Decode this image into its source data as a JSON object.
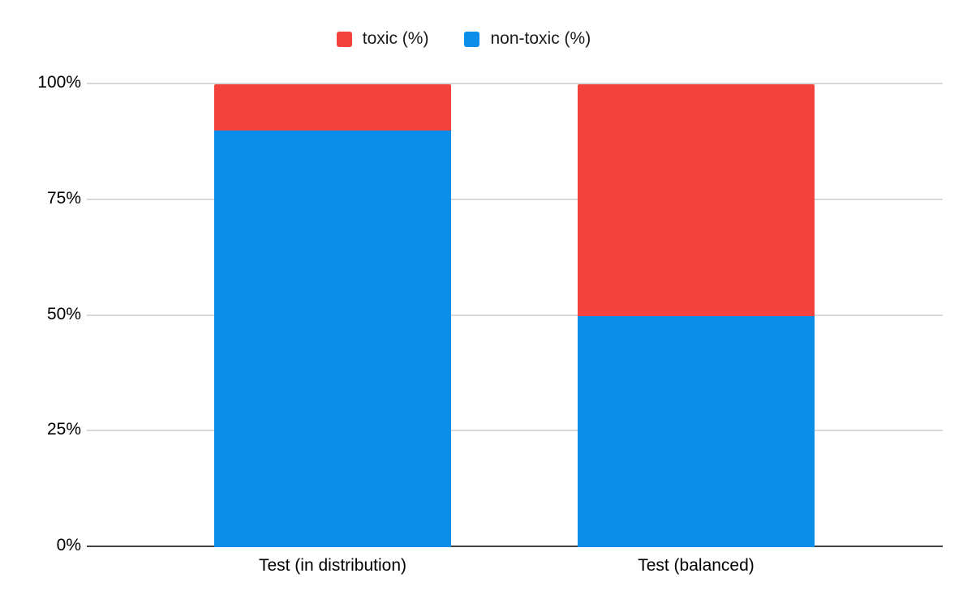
{
  "chart_data": {
    "type": "bar",
    "stacked": true,
    "title": "",
    "xlabel": "",
    "ylabel": "",
    "categories": [
      "Test (in distribution)",
      "Test (balanced)"
    ],
    "series": [
      {
        "name": "toxic (%)",
        "color": "#F4433C",
        "values": [
          10,
          50
        ]
      },
      {
        "name": "non-toxic (%)",
        "color": "#0B8EEA",
        "values": [
          90,
          50
        ]
      }
    ],
    "y_axis": {
      "ticks": [
        "0%",
        "25%",
        "50%",
        "75%",
        "100%"
      ],
      "tick_values": [
        0,
        25,
        50,
        75,
        100
      ],
      "ylim": [
        0,
        100
      ]
    },
    "legend_position": "top-center",
    "grid": true
  },
  "colors": {
    "toxic": "#F4433C",
    "non_toxic": "#0B8EEA",
    "gridline": "#D9D9D9",
    "axis_line": "#424242",
    "text": "#000000",
    "background": "#FFFFFF"
  }
}
